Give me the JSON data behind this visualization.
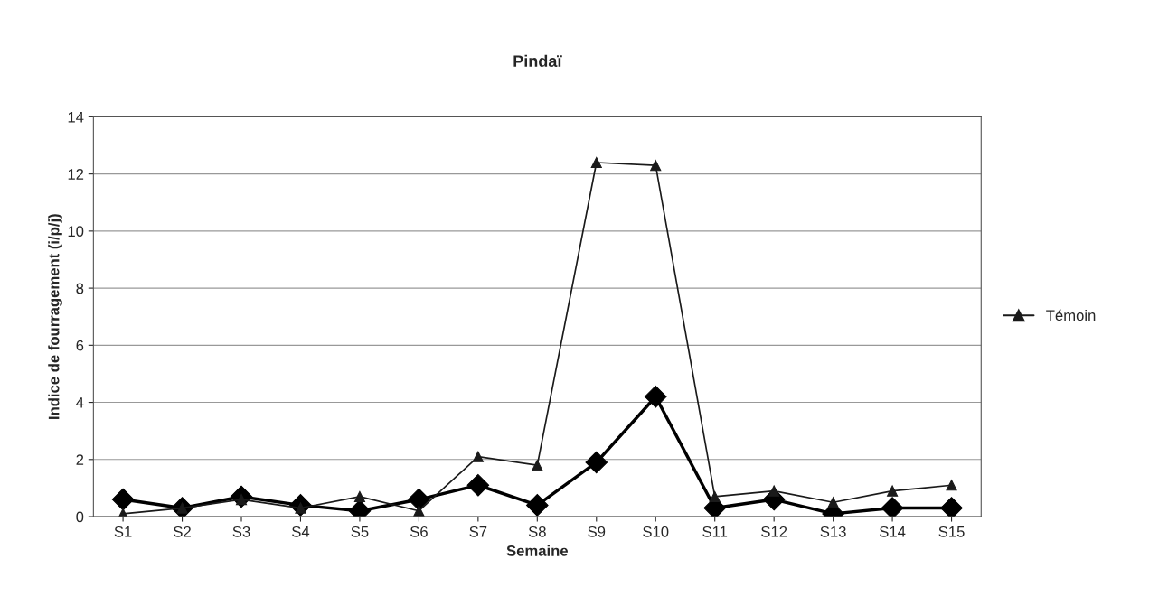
{
  "chart_data": {
    "type": "line",
    "title": "Pindaï",
    "xlabel": "Semaine",
    "ylabel": "Indice de fourragement (i/p/j)",
    "categories": [
      "S1",
      "S2",
      "S3",
      "S4",
      "S5",
      "S6",
      "S7",
      "S8",
      "S9",
      "S10",
      "S11",
      "S12",
      "S13",
      "S14",
      "S15"
    ],
    "series": [
      {
        "color": "#000000",
        "marker": "diamond",
        "values": [
          0.6,
          0.3,
          0.7,
          0.4,
          0.2,
          0.6,
          1.1,
          0.4,
          1.9,
          4.2,
          0.3,
          0.6,
          0.1,
          0.3,
          0.3
        ]
      },
      {
        "name": "Témoin",
        "color": "#1a1a1a",
        "marker": "triangle",
        "values": [
          0.1,
          0.3,
          0.6,
          0.3,
          0.7,
          0.2,
          2.1,
          1.8,
          12.4,
          12.3,
          0.7,
          0.9,
          0.5,
          0.9,
          1.1
        ]
      }
    ],
    "ylim": [
      0,
      14
    ],
    "yticks": [
      0,
      2,
      4,
      6,
      8,
      10,
      12,
      14
    ],
    "grid": "y",
    "legend": "right"
  }
}
